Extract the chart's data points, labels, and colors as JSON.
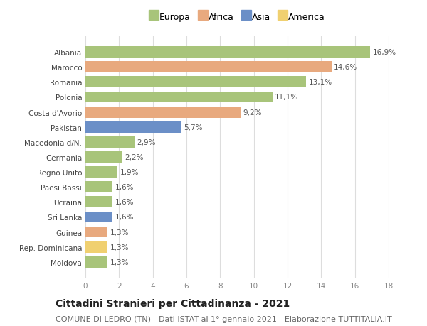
{
  "categories": [
    "Albania",
    "Marocco",
    "Romania",
    "Polonia",
    "Costa d'Avorio",
    "Pakistan",
    "Macedonia d/N.",
    "Germania",
    "Regno Unito",
    "Paesi Bassi",
    "Ucraina",
    "Sri Lanka",
    "Guinea",
    "Rep. Dominicana",
    "Moldova"
  ],
  "values": [
    16.9,
    14.6,
    13.1,
    11.1,
    9.2,
    5.7,
    2.9,
    2.2,
    1.9,
    1.6,
    1.6,
    1.6,
    1.3,
    1.3,
    1.3
  ],
  "labels": [
    "16,9%",
    "14,6%",
    "13,1%",
    "11,1%",
    "9,2%",
    "5,7%",
    "2,9%",
    "2,2%",
    "1,9%",
    "1,6%",
    "1,6%",
    "1,6%",
    "1,3%",
    "1,3%",
    "1,3%"
  ],
  "continents": [
    "Europa",
    "Africa",
    "Europa",
    "Europa",
    "Africa",
    "Asia",
    "Europa",
    "Europa",
    "Europa",
    "Europa",
    "Europa",
    "Asia",
    "Africa",
    "America",
    "Europa"
  ],
  "colors": {
    "Europa": "#a8c47a",
    "Africa": "#e8a97e",
    "Asia": "#6b8fc7",
    "America": "#f0d070"
  },
  "legend_order": [
    "Europa",
    "Africa",
    "Asia",
    "America"
  ],
  "title": "Cittadini Stranieri per Cittadinanza - 2021",
  "subtitle": "COMUNE DI LEDRO (TN) - Dati ISTAT al 1° gennaio 2021 - Elaborazione TUTTITALIA.IT",
  "xlim": [
    0,
    18
  ],
  "xticks": [
    0,
    2,
    4,
    6,
    8,
    10,
    12,
    14,
    16,
    18
  ],
  "background_color": "#ffffff",
  "grid_color": "#dddddd",
  "bar_height": 0.75,
  "title_fontsize": 10,
  "subtitle_fontsize": 8,
  "label_fontsize": 7.5,
  "tick_fontsize": 7.5,
  "legend_fontsize": 9
}
